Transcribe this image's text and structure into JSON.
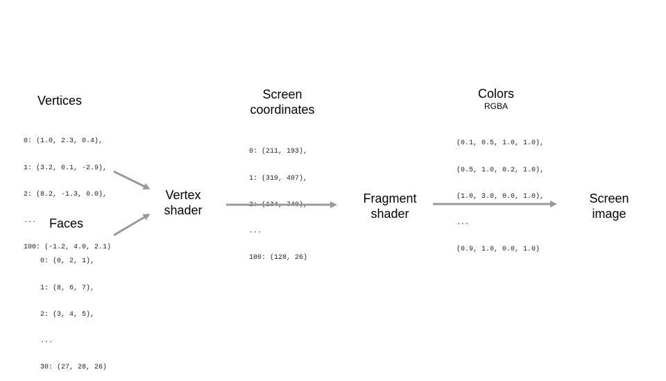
{
  "vertices": {
    "title": "Vertices",
    "lines": [
      "0: (1.0, 2.3, 0.4),",
      "1: (3.2, 0.1, -2.9),",
      "2: (8.2, -1.3, 0.0),",
      "...",
      "100: (-1.2, 4.0, 2.1)"
    ]
  },
  "faces": {
    "title": "Faces",
    "lines": [
      "0: (0, 2, 1),",
      "1: (8, 6, 7),",
      "2: (3, 4, 5),",
      "...",
      "30: (27, 28, 26)"
    ]
  },
  "screen_coordinates": {
    "title_line1": "Screen",
    "title_line2": "coordinates",
    "lines": [
      "0: (211, 193),",
      "1: (319, 407),",
      "2: (134, 740),",
      "...",
      "100: (128, 26)"
    ]
  },
  "colors": {
    "title": "Colors",
    "subtitle": "RGBA",
    "lines": [
      "(0.1, 0.5, 1.0, 1.0),",
      "(0.5, 1.0, 0.2, 1.0),",
      "(1.0, 3.0, 0.0, 1.0),",
      "...",
      "(0.9, 1.0, 0.0, 1.0)"
    ]
  },
  "vertex_shader": {
    "line1": "Vertex",
    "line2": "shader"
  },
  "fragment_shader": {
    "line1": "Fragment",
    "line2": "shader"
  },
  "screen_image": {
    "line1": "Screen",
    "line2": "image"
  },
  "arrow_color": "#999999"
}
